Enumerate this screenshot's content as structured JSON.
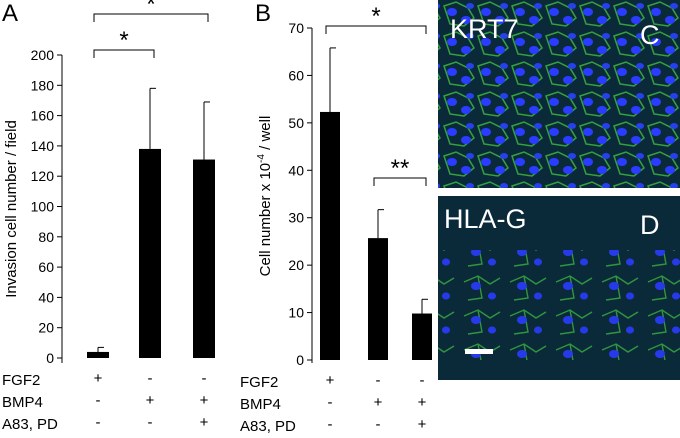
{
  "figure": {
    "panel_a_letter": "A",
    "panel_b_letter": "B",
    "panel_c_letter": "C",
    "panel_d_letter": "D",
    "image_c_label": "KRT7",
    "image_d_label": "HLA-G"
  },
  "conditions": {
    "row_labels": [
      "FGF2",
      "BMP4",
      "A83, PD"
    ],
    "signs": [
      [
        "+",
        "-",
        "-"
      ],
      [
        "-",
        "+",
        "+"
      ],
      [
        "-",
        "-",
        "+"
      ]
    ]
  },
  "colors": {
    "bar": "#000000",
    "micrograph_background": "#0a2a3a",
    "cytoplasm_stain": "#3fbf3f",
    "nucleus_stain": "#2a3cff"
  },
  "chart_data": [
    {
      "type": "bar",
      "panel": "A",
      "categories": [
        "FGF2",
        "BMP4",
        "BMP4 + A83, PD"
      ],
      "values": [
        4,
        138,
        131
      ],
      "errors": [
        3,
        40,
        38
      ],
      "ylabel": "Invasion cell number / field",
      "ylim": [
        0,
        200
      ],
      "yticks": [
        0,
        20,
        40,
        60,
        80,
        100,
        120,
        140,
        160,
        180,
        200
      ],
      "significance": [
        {
          "from": 0,
          "to": 1,
          "label": "*"
        },
        {
          "from": 0,
          "to": 2,
          "label": "*"
        }
      ]
    },
    {
      "type": "bar",
      "panel": "B",
      "categories": [
        "FGF2",
        "BMP4",
        "BMP4 + A83, PD"
      ],
      "values": [
        52.3,
        25.7,
        9.8
      ],
      "errors": [
        13.5,
        6,
        3
      ],
      "ylabel": "Cell number x 10 -4 / well",
      "ylim": [
        0,
        70
      ],
      "yticks": [
        0,
        10,
        20,
        30,
        40,
        50,
        60,
        70
      ],
      "significance": [
        {
          "from": 0,
          "to": 2,
          "label": "*"
        },
        {
          "from": 1,
          "to": 2,
          "label": "**"
        }
      ]
    }
  ]
}
